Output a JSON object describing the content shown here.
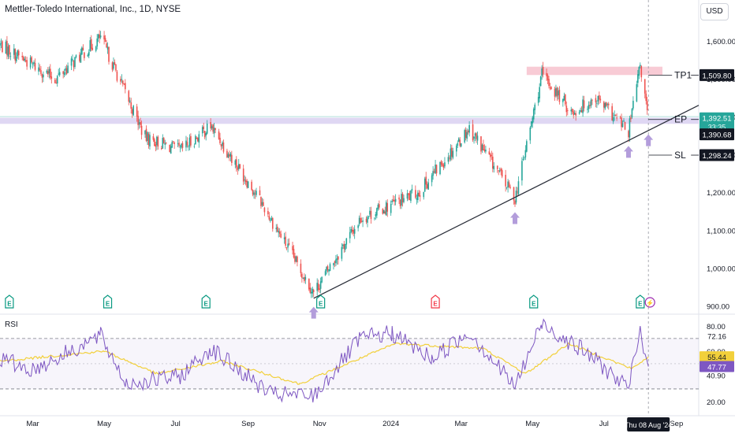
{
  "header": {
    "title": "Mettler-Toledo International, Inc., 1D, NYSE",
    "currency": "USD"
  },
  "colors": {
    "up": "#26a69a",
    "down": "#ef5350",
    "rsi_line": "#7e57c2",
    "rsi_ma": "#f2d03b",
    "trendline": "#2a2e39",
    "resistance_zone": "#f7c5d0",
    "support_zone": "#dcd3f2",
    "arrow": "#b39ddb",
    "earnings_green": "#089981",
    "earnings_red": "#f23645",
    "ep_label": "#26a69a",
    "dark_label": "#131722"
  },
  "price_axis": {
    "ticks": [
      "1,600.00",
      "1,500.00",
      "1,400.00",
      "1,300.00",
      "1,200.00",
      "1,100.00",
      "1,000.00",
      "900.00"
    ],
    "tick_values": [
      1600,
      1500,
      1400,
      1300,
      1200,
      1100,
      1000,
      900
    ]
  },
  "time_axis": {
    "labels": [
      "Mar",
      "May",
      "Jul",
      "Sep",
      "Nov",
      "2024",
      "Mar",
      "May",
      "Jul",
      "Sep"
    ],
    "crosshair_label": "Thu 08 Aug '24"
  },
  "annotations": {
    "tp1": {
      "label": "TP1",
      "value": "1,509.80"
    },
    "ep": {
      "label": "EP",
      "value": "1,392.51",
      "timer": "33:35"
    },
    "last_price": {
      "value": "1,390.68"
    },
    "sl": {
      "label": "SL",
      "value": "1,298.24"
    },
    "earnings_marker": "E",
    "dividend_marker": "⚡"
  },
  "rsi": {
    "label": "RSI",
    "axis_ticks": [
      "80.00",
      "60.00",
      "40.90",
      "20.00"
    ],
    "axis_tick_values": [
      80,
      60,
      40.9,
      20
    ],
    "upper_band_value": "72.16",
    "rsi_ma_value": "55.44",
    "rsi_value": "47.77",
    "band": [
      30,
      70
    ]
  },
  "chart_data": [
    {
      "type": "candlestick",
      "title": "Mettler-Toledo International, Inc., 1D, NYSE",
      "x_axis": "date",
      "x_range": [
        "2023-02-01",
        "2024-09-20"
      ],
      "y_range": [
        880,
        1650
      ],
      "key_points": [
        {
          "date": "2023-02-01",
          "close": 1590
        },
        {
          "date": "2023-03-20",
          "close": 1500
        },
        {
          "date": "2023-04-28",
          "close": 1610
        },
        {
          "date": "2023-06-05",
          "close": 1345
        },
        {
          "date": "2023-07-05",
          "close": 1310
        },
        {
          "date": "2023-07-31",
          "close": 1375
        },
        {
          "date": "2023-09-10",
          "close": 1185
        },
        {
          "date": "2023-10-27",
          "close": 935
        },
        {
          "date": "2023-12-06",
          "close": 1130
        },
        {
          "date": "2024-01-25",
          "close": 1200
        },
        {
          "date": "2024-03-08",
          "close": 1370
        },
        {
          "date": "2024-04-16",
          "close": 1185
        },
        {
          "date": "2024-05-09",
          "close": 1510
        },
        {
          "date": "2024-06-04",
          "close": 1410
        },
        {
          "date": "2024-06-24",
          "close": 1450
        },
        {
          "date": "2024-07-22",
          "close": 1360
        },
        {
          "date": "2024-08-01",
          "close": 1535
        },
        {
          "date": "2024-08-08",
          "close": 1390.68
        }
      ],
      "levels": {
        "TP1": 1509.8,
        "EP": 1392.51,
        "last": 1390.68,
        "SL": 1298.24
      },
      "zones": [
        {
          "kind": "resistance",
          "from": 1510,
          "to": 1532
        },
        {
          "kind": "support",
          "from": 1381,
          "to": 1397
        }
      ],
      "trendline": [
        {
          "date": "2023-10-27",
          "value": 920
        },
        {
          "date": "2024-09-20",
          "value": 1430
        }
      ],
      "earnings_dates": [
        "2023-02-09",
        "2023-05-04",
        "2023-07-27",
        "2023-11-02",
        "2024-02-08",
        "2024-05-02",
        "2024-08-01"
      ],
      "earnings_negative": [
        "2024-02-08"
      ],
      "dividend_dates": [
        "2024-08-08"
      ],
      "arrows": [
        "2023-10-27",
        "2024-04-16",
        "2024-07-22",
        "2024-08-08"
      ]
    },
    {
      "type": "line",
      "title": "RSI",
      "y_range": [
        15,
        88
      ],
      "series": [
        {
          "name": "RSI",
          "key_points": [
            {
              "date": "2023-02-01",
              "value": 54
            },
            {
              "date": "2023-03-01",
              "value": 45
            },
            {
              "date": "2023-04-28",
              "value": 72
            },
            {
              "date": "2023-05-20",
              "value": 34
            },
            {
              "date": "2023-07-05",
              "value": 40
            },
            {
              "date": "2023-07-31",
              "value": 62
            },
            {
              "date": "2023-09-20",
              "value": 26
            },
            {
              "date": "2023-10-27",
              "value": 24
            },
            {
              "date": "2023-12-06",
              "value": 70
            },
            {
              "date": "2024-01-02",
              "value": 74
            },
            {
              "date": "2024-02-05",
              "value": 54
            },
            {
              "date": "2024-03-08",
              "value": 75
            },
            {
              "date": "2024-04-16",
              "value": 32
            },
            {
              "date": "2024-05-09",
              "value": 82
            },
            {
              "date": "2024-06-20",
              "value": 56
            },
            {
              "date": "2024-07-22",
              "value": 30
            },
            {
              "date": "2024-08-01",
              "value": 76
            },
            {
              "date": "2024-08-08",
              "value": 47.77
            }
          ]
        },
        {
          "name": "RSI-based MA",
          "key_points": [
            {
              "date": "2023-02-01",
              "value": 52
            },
            {
              "date": "2023-05-01",
              "value": 60
            },
            {
              "date": "2023-06-15",
              "value": 42
            },
            {
              "date": "2023-08-10",
              "value": 52
            },
            {
              "date": "2023-10-15",
              "value": 34
            },
            {
              "date": "2024-01-05",
              "value": 66
            },
            {
              "date": "2024-03-20",
              "value": 62
            },
            {
              "date": "2024-04-25",
              "value": 42
            },
            {
              "date": "2024-06-01",
              "value": 66
            },
            {
              "date": "2024-07-25",
              "value": 46
            },
            {
              "date": "2024-08-08",
              "value": 55.44
            }
          ]
        }
      ]
    }
  ]
}
